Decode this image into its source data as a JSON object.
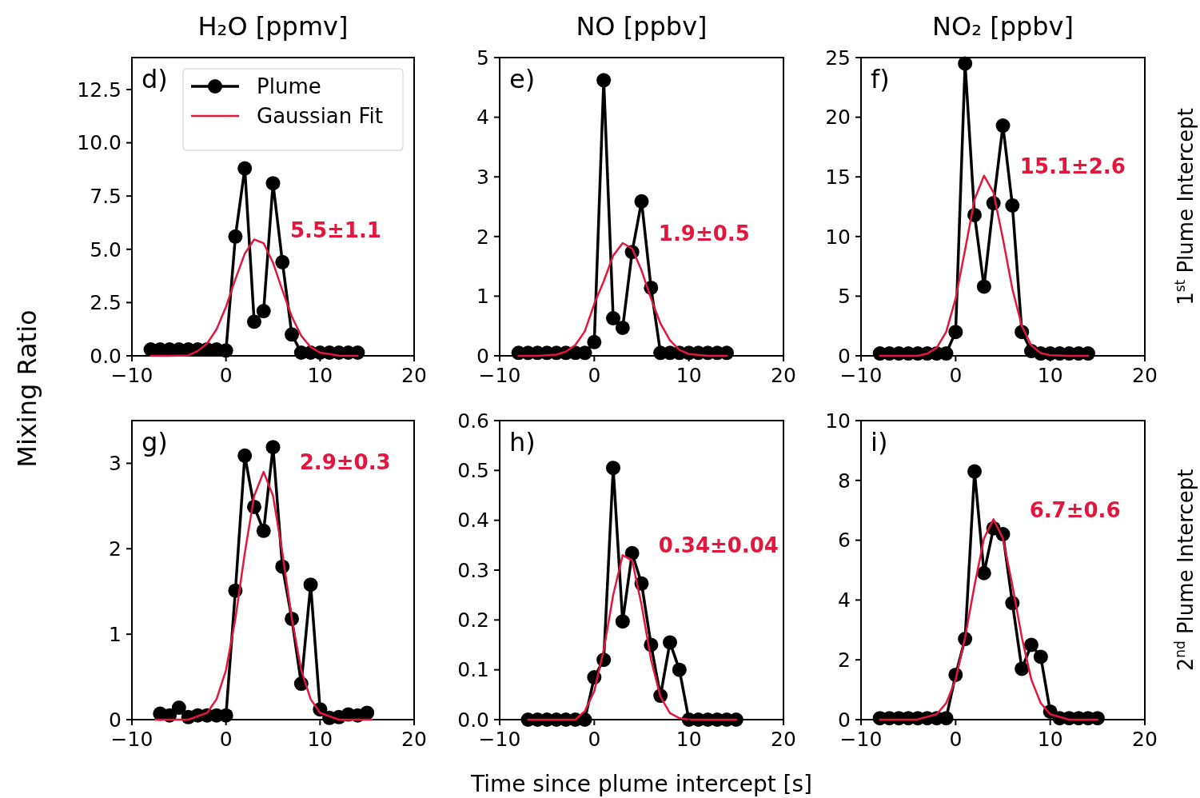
{
  "chart_data": [
    {
      "type": "line",
      "title": "H₂O [ppmv]",
      "ylabel": "Mixing Ratio",
      "legend": "top right",
      "xlim": [
        -10,
        20
      ],
      "xticks": [
        -10,
        0,
        10,
        20
      ],
      "ylim": [
        0,
        14
      ],
      "yticks": [
        {
          "value": 0,
          "label": "0.0"
        },
        2.5,
        {
          "value": 5,
          "label": "5.0"
        },
        7.5,
        {
          "value": 10,
          "label": "10.0"
        },
        12.5
      ],
      "annotations": [
        "d)",
        "5.5±1.1"
      ],
      "series": [
        {
          "name": "Plume",
          "color": "#000000",
          "marker": "circle",
          "x": [
            -8,
            -7,
            -6,
            -5,
            -4,
            -3,
            -2,
            -1,
            0,
            1,
            2,
            3,
            4,
            5,
            6,
            7,
            8,
            9,
            10,
            11,
            12,
            13,
            14
          ],
          "values": [
            0.3,
            0.3,
            0.3,
            0.3,
            0.3,
            0.3,
            0.3,
            0.3,
            0.25,
            5.6,
            8.8,
            1.6,
            2.1,
            8.1,
            4.4,
            1.0,
            0.15,
            0.15,
            0.15,
            0.15,
            0.15,
            0.15,
            0.15
          ]
        },
        {
          "name": "Gaussian Fit",
          "color": "#e3173e",
          "marker": "none",
          "x": [
            -8,
            -6,
            -4,
            -3,
            -2,
            -1,
            0,
            1,
            2,
            3,
            4,
            5,
            6,
            7,
            8,
            9,
            10,
            12,
            14
          ],
          "values": [
            0,
            0,
            0.02,
            0.23,
            0.58,
            1.25,
            2.3,
            3.6,
            4.8,
            5.46,
            5.29,
            4.37,
            3.07,
            1.84,
            0.94,
            0.41,
            0.15,
            0.01,
            0
          ]
        }
      ]
    },
    {
      "type": "line",
      "title": "NO [ppbv]",
      "xlim": [
        -10,
        20
      ],
      "xticks": [
        -10,
        0,
        10,
        20
      ],
      "ylim": [
        0,
        5
      ],
      "yticks": [
        0,
        1,
        2,
        3,
        4,
        5
      ],
      "annotations": [
        "e)",
        "1.9±0.5"
      ],
      "series": [
        {
          "color": "#000000",
          "marker": "circle",
          "x": [
            -8,
            -7,
            -6,
            -5,
            -4,
            -3,
            -2,
            -1,
            0,
            1,
            2,
            3,
            4,
            5,
            6,
            7,
            8,
            9,
            10,
            11,
            12,
            13,
            14
          ],
          "values": [
            0.05,
            0.05,
            0.05,
            0.05,
            0.05,
            0.05,
            0.05,
            0.05,
            0.23,
            4.62,
            0.63,
            0.47,
            1.74,
            2.59,
            1.14,
            0.05,
            0.05,
            0.05,
            0.05,
            0.05,
            0.05,
            0.05,
            0.05
          ]
        },
        {
          "color": "#e3173e",
          "marker": "none",
          "x": [
            -8,
            -6,
            -4,
            -3,
            -2,
            -1,
            0,
            1,
            2,
            3,
            4,
            5,
            6,
            7,
            8,
            9,
            10,
            12,
            14
          ],
          "values": [
            0,
            0,
            0.02,
            0.07,
            0.18,
            0.41,
            0.87,
            1.25,
            1.68,
            1.89,
            1.8,
            1.43,
            0.96,
            0.54,
            0.26,
            0.1,
            0.03,
            0,
            0
          ]
        }
      ]
    },
    {
      "type": "line",
      "title": "NO₂ [ppbv]",
      "y2label": "1$^{st}$ Plume Intercept",
      "xlim": [
        -10,
        20
      ],
      "xticks": [
        -10,
        0,
        10,
        20
      ],
      "ylim": [
        0,
        25
      ],
      "yticks": [
        0,
        5,
        10,
        15,
        20,
        25
      ],
      "annotations": [
        "f)",
        "15.1±2.6"
      ],
      "series": [
        {
          "color": "#000000",
          "marker": "circle",
          "x": [
            -8,
            -7,
            -6,
            -5,
            -4,
            -3,
            -2,
            -1,
            0,
            1,
            2,
            3,
            4,
            5,
            6,
            7,
            8,
            9,
            10,
            11,
            12,
            13,
            14
          ],
          "values": [
            0.2,
            0.2,
            0.2,
            0.2,
            0.2,
            0.2,
            0.2,
            0.2,
            2.0,
            24.5,
            11.8,
            5.8,
            12.8,
            19.3,
            12.6,
            2.0,
            0.4,
            0.2,
            0.2,
            0.2,
            0.2,
            0.2,
            0.2
          ]
        },
        {
          "color": "#e3173e",
          "marker": "none",
          "x": [
            -8,
            -4,
            -3,
            -2,
            -1,
            0,
            1,
            2,
            3,
            4,
            5,
            6,
            7,
            8,
            9,
            10,
            12,
            14
          ],
          "values": [
            0,
            0,
            0.18,
            0.68,
            2.0,
            4.8,
            8.9,
            13.1,
            15.1,
            13.7,
            9.8,
            5.6,
            2.5,
            0.87,
            0.24,
            0.05,
            0,
            0
          ]
        }
      ]
    },
    {
      "type": "line",
      "xlim": [
        -10,
        20
      ],
      "xticks": [
        -10,
        0,
        10,
        20
      ],
      "ylim": [
        0,
        3.5
      ],
      "yticks": [
        0,
        1,
        2,
        3
      ],
      "annotations": [
        "g)",
        "2.9±0.3"
      ],
      "series": [
        {
          "color": "#000000",
          "marker": "circle",
          "x": [
            -7,
            -6,
            -5,
            -4,
            -3,
            -2,
            -1,
            0,
            1,
            2,
            3,
            4,
            5,
            6,
            7,
            8,
            9,
            10,
            11,
            12,
            13,
            14,
            15
          ],
          "values": [
            0.07,
            0.05,
            0.14,
            0.03,
            0.05,
            0.05,
            0.05,
            0.05,
            1.51,
            3.09,
            2.49,
            2.21,
            3.19,
            1.79,
            1.18,
            0.42,
            1.58,
            0.12,
            0.02,
            0.03,
            0.06,
            0.05,
            0.08
          ]
        },
        {
          "color": "#e3173e",
          "marker": "none",
          "x": [
            -7.5,
            -4,
            -2,
            -1,
            0,
            1,
            2,
            3,
            4,
            5,
            6,
            7,
            8,
            9,
            10,
            12,
            15.5
          ],
          "values": [
            0,
            0,
            0.08,
            0.24,
            0.58,
            1.18,
            1.95,
            2.62,
            2.9,
            2.62,
            1.95,
            1.18,
            0.58,
            0.24,
            0.08,
            0,
            0
          ]
        }
      ]
    },
    {
      "type": "line",
      "xlabel": "Time since plume intercept [s]",
      "xlim": [
        -10,
        20
      ],
      "xticks": [
        -10,
        0,
        10,
        20
      ],
      "ylim": [
        0,
        0.6
      ],
      "yticks": [
        {
          "value": 0,
          "label": "0.0"
        },
        0.1,
        0.2,
        0.3,
        0.4,
        0.5,
        0.6
      ],
      "annotations": [
        "h)",
        "0.34±0.04"
      ],
      "series": [
        {
          "color": "#000000",
          "marker": "circle",
          "x": [
            -7,
            -6,
            -5,
            -4,
            -3,
            -2,
            -1,
            0,
            1,
            2,
            3,
            4,
            5,
            6,
            7,
            8,
            9,
            10,
            11,
            12,
            13,
            14,
            15
          ],
          "values": [
            0,
            0,
            0,
            0,
            0,
            0,
            0,
            0.085,
            0.12,
            0.505,
            0.197,
            0.334,
            0.273,
            0.15,
            0.048,
            0.155,
            0.1,
            0,
            0,
            0,
            0,
            0,
            0
          ]
        },
        {
          "color": "#e3173e",
          "marker": "none",
          "x": [
            -7,
            -2,
            -1,
            0,
            1,
            2,
            3,
            4,
            5,
            6,
            7,
            8,
            9,
            10,
            15
          ],
          "values": [
            0,
            0,
            0.017,
            0.057,
            0.14,
            0.25,
            0.33,
            0.32,
            0.23,
            0.12,
            0.046,
            0.013,
            0.003,
            0,
            0
          ]
        }
      ]
    },
    {
      "type": "line",
      "y2label": "2$^{nd}$ Plume Intercept",
      "xlim": [
        -10,
        20
      ],
      "xticks": [
        -10,
        0,
        10,
        20
      ],
      "ylim": [
        0,
        10
      ],
      "yticks": [
        0,
        2,
        4,
        6,
        8,
        10
      ],
      "annotations": [
        "i)",
        "6.7±0.6"
      ],
      "series": [
        {
          "color": "#000000",
          "marker": "circle",
          "x": [
            -8,
            -7,
            -6,
            -5,
            -4,
            -3,
            -2,
            -1,
            0,
            1,
            2,
            3,
            4,
            5,
            6,
            7,
            8,
            9,
            10,
            11,
            12,
            13,
            14,
            15
          ],
          "values": [
            0.05,
            0.05,
            0.05,
            0.05,
            0.05,
            0.05,
            0.05,
            0.05,
            1.5,
            2.7,
            8.3,
            4.9,
            6.4,
            6.2,
            3.9,
            1.7,
            2.5,
            2.1,
            0.27,
            0.05,
            0.05,
            0.05,
            0.05,
            0.05
          ]
        },
        {
          "color": "#e3173e",
          "marker": "none",
          "x": [
            -8,
            -4,
            -2,
            -1,
            0,
            1,
            2,
            3,
            4,
            5,
            6,
            7,
            8,
            9,
            10,
            12,
            15
          ],
          "values": [
            0,
            0.01,
            0.18,
            0.55,
            1.34,
            2.75,
            4.49,
            6.06,
            6.7,
            6.06,
            4.49,
            2.75,
            1.34,
            0.55,
            0.18,
            0,
            0
          ]
        }
      ]
    }
  ]
}
